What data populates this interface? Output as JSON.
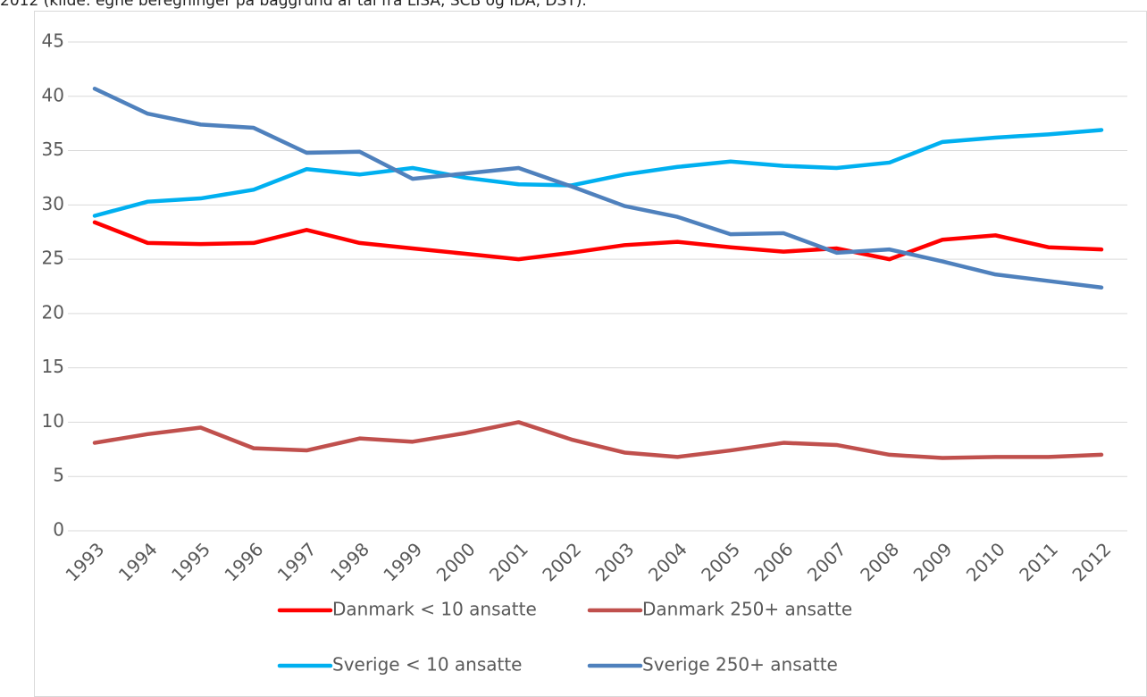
{
  "chart_data": {
    "type": "line",
    "caption": "2012 (kilde: egne beregninger på baggrund af tal fra LISA, SCB og IDA, DST).",
    "categories": [
      "1993",
      "1994",
      "1995",
      "1996",
      "1997",
      "1998",
      "1999",
      "2000",
      "2001",
      "2002",
      "2003",
      "2004",
      "2005",
      "2006",
      "2007",
      "2008",
      "2009",
      "2010",
      "2011",
      "2012"
    ],
    "series": [
      {
        "name": "Danmark < 10 ansatte",
        "color": "#ff0000",
        "values": [
          28.4,
          26.5,
          26.4,
          26.5,
          27.7,
          26.5,
          26.0,
          25.5,
          25.0,
          25.6,
          26.3,
          26.6,
          26.1,
          25.7,
          26.0,
          25.0,
          26.8,
          27.2,
          26.1,
          25.9
        ]
      },
      {
        "name": "Danmark 250+ ansatte",
        "color": "#c0504d",
        "values": [
          8.1,
          8.9,
          9.5,
          7.6,
          7.4,
          8.5,
          8.2,
          9.0,
          10.0,
          8.4,
          7.2,
          6.8,
          7.4,
          8.1,
          7.9,
          7.0,
          6.7,
          6.8,
          6.8,
          7.0
        ]
      },
      {
        "name": "Sverige < 10 ansatte",
        "color": "#00b0f0",
        "values": [
          29.0,
          30.3,
          30.6,
          31.4,
          33.3,
          32.8,
          33.4,
          32.5,
          31.9,
          31.8,
          32.8,
          33.5,
          34.0,
          33.6,
          33.4,
          33.9,
          35.8,
          36.2,
          36.5,
          36.9
        ]
      },
      {
        "name": "Sverige 250+ ansatte",
        "color": "#4f81bd",
        "values": [
          40.7,
          38.4,
          37.4,
          37.1,
          34.8,
          34.9,
          32.4,
          32.9,
          33.4,
          31.7,
          29.9,
          28.9,
          27.3,
          27.4,
          25.6,
          25.9,
          24.8,
          23.6,
          23.0,
          22.4
        ]
      }
    ],
    "ylim": [
      0,
      45
    ],
    "yticks": [
      0,
      5,
      10,
      15,
      20,
      25,
      30,
      35,
      40,
      45
    ],
    "grid": true
  }
}
